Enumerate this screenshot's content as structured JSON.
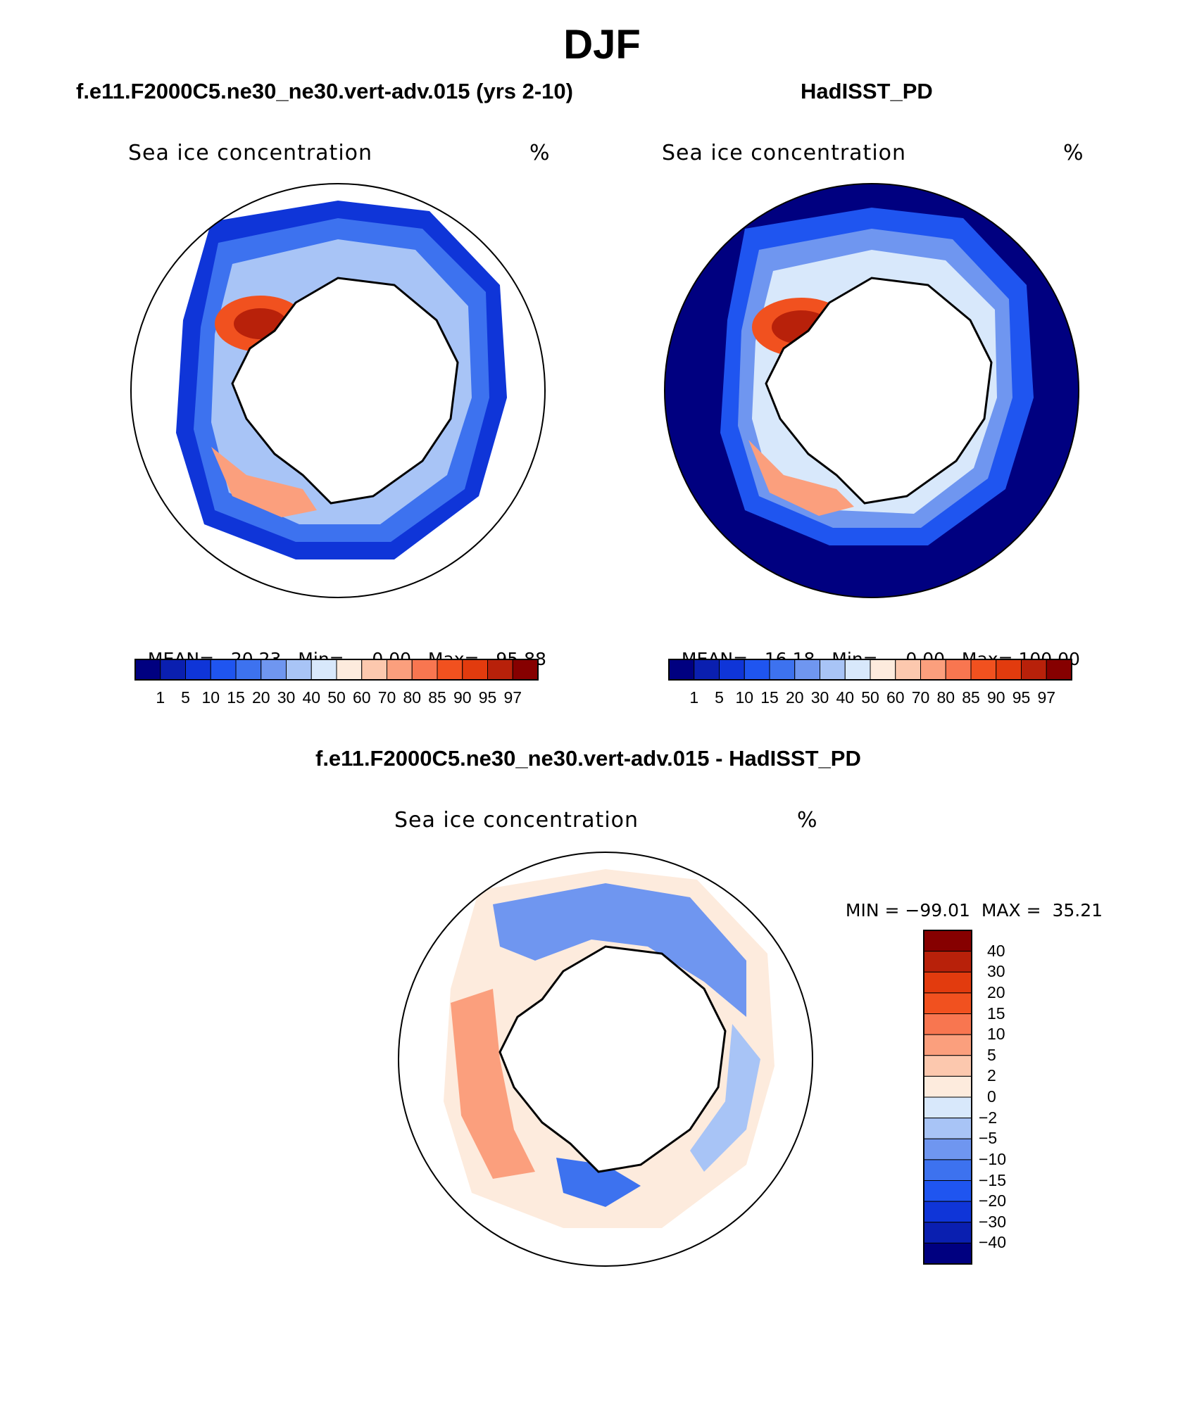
{
  "figure": {
    "title": "DJF",
    "panels": [
      {
        "title": "f.e11.F2000C5.ne30_ne30.vert-adv.015 (yrs 2-10)",
        "variable": "Sea ice concentration",
        "units": "%",
        "stats": {
          "mean_label": "MEAN=",
          "mean": "20.23",
          "min_label": "Min=",
          "min": "0.00",
          "max_label": "Max=",
          "max": "95.88"
        }
      },
      {
        "title": "HadISST_PD",
        "variable": "Sea ice concentration",
        "units": "%",
        "stats": {
          "mean_label": "MEAN=",
          "mean": "16.18",
          "min_label": "Min=",
          "min": "0.00",
          "max_label": "Max=",
          "max": "100.00"
        }
      },
      {
        "title": "f.e11.F2000C5.ne30_ne30.vert-adv.015 - HadISST_PD",
        "variable": "Sea ice concentration",
        "units": "%",
        "stats": {
          "min_label": "MIN =",
          "min": "−99.01",
          "max_label": "MAX =",
          "max": "35.21"
        }
      }
    ]
  },
  "colorbar_abs": {
    "labels": [
      "1",
      "5",
      "10",
      "15",
      "20",
      "30",
      "40",
      "50",
      "60",
      "70",
      "80",
      "85",
      "90",
      "95",
      "97"
    ],
    "colors": [
      "#000080",
      "#0a1fb0",
      "#0f35d8",
      "#1f55f0",
      "#3d72ef",
      "#6f96f0",
      "#a8c4f6",
      "#d8e8fb",
      "#fdebdd",
      "#fcc8ae",
      "#fb9f7d",
      "#f87650",
      "#f1511f",
      "#e23b0e",
      "#b8210a",
      "#860000"
    ]
  },
  "colorbar_diff": {
    "labels": [
      "40",
      "30",
      "20",
      "15",
      "10",
      "5",
      "2",
      "0",
      "−2",
      "−5",
      "−10",
      "−15",
      "−20",
      "−30",
      "−40"
    ],
    "colors": [
      "#860000",
      "#b8210a",
      "#e23b0e",
      "#f1511f",
      "#f87650",
      "#fb9f7d",
      "#fcc8ae",
      "#fdebdd",
      "#d8e8fb",
      "#a8c4f6",
      "#6f96f0",
      "#3d72ef",
      "#1f55f0",
      "#0f35d8",
      "#0a1fb0",
      "#000080"
    ]
  }
}
